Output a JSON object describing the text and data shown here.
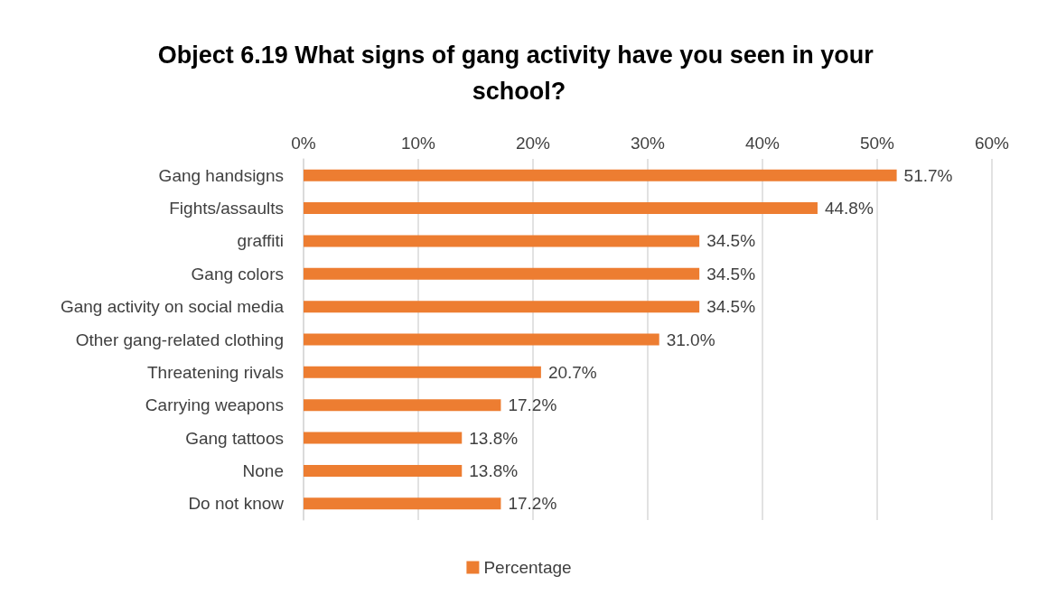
{
  "chart_data": {
    "type": "bar",
    "orientation": "horizontal",
    "title": "Object 6.19 What signs of gang activity have you seen in your school?",
    "categories": [
      "Gang handsigns",
      "Fights/assaults",
      "graffiti",
      "Gang colors",
      "Gang activity on social media",
      "Other gang-related clothing",
      "Threatening rivals",
      "Carrying weapons",
      "Gang tattoos",
      "None",
      "Do not know"
    ],
    "series": [
      {
        "name": "Percentage",
        "color": "#ed7d31",
        "values": [
          51.7,
          44.8,
          34.5,
          34.5,
          34.5,
          31.0,
          20.7,
          17.2,
          13.8,
          13.8,
          17.2
        ],
        "value_labels": [
          "51.7%",
          "44.8%",
          "34.5%",
          "34.5%",
          "34.5%",
          "31.0%",
          "20.7%",
          "17.2%",
          "13.8%",
          "13.8%",
          "17.2%"
        ]
      }
    ],
    "xlim": [
      0,
      60
    ],
    "xticks": [
      {
        "value": 0,
        "label": "0%"
      },
      {
        "value": 10,
        "label": "10%"
      },
      {
        "value": 20,
        "label": "20%"
      },
      {
        "value": 30,
        "label": "30%"
      },
      {
        "value": 40,
        "label": "40%"
      },
      {
        "value": 50,
        "label": "50%"
      },
      {
        "value": 60,
        "label": "60%"
      }
    ],
    "grid": "x",
    "legend": "bottom"
  }
}
